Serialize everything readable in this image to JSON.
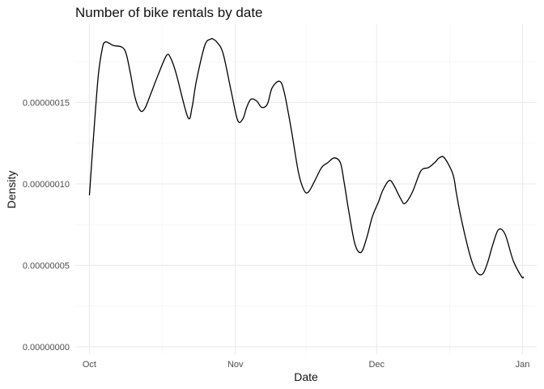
{
  "chart_data": {
    "type": "line",
    "title": "Number of bike rentals by date",
    "xlabel": "Date",
    "ylabel": "Density",
    "xlim": [
      -3,
      95
    ],
    "ylim": [
      -4.5e-09,
      1.98e-07
    ],
    "grid": true,
    "legend": "none",
    "x_ticks": [
      {
        "value": 0,
        "label": "Oct"
      },
      {
        "value": 31,
        "label": "Nov"
      },
      {
        "value": 61,
        "label": "Dec"
      },
      {
        "value": 92,
        "label": "Jan"
      }
    ],
    "x_minor_ticks": [
      15.5,
      46,
      76.5
    ],
    "y_ticks": [
      {
        "value": 0.0,
        "label": "0.00000000"
      },
      {
        "value": 5e-08,
        "label": "0.00000005"
      },
      {
        "value": 1e-07,
        "label": "0.00000010"
      },
      {
        "value": 1.5e-07,
        "label": "0.00000015"
      }
    ],
    "y_minor_ticks": [
      2.5e-08,
      7.5e-08,
      1.25e-07,
      1.75e-07
    ],
    "series": [
      {
        "name": "density",
        "x": [
          0,
          0.9,
          1.9,
          2.8,
          3.3,
          3.8,
          5.1,
          6.9,
          7.8,
          8.7,
          9.7,
          10.8,
          11.7,
          12.6,
          14.6,
          16.4,
          17.3,
          18.4,
          20.9,
          21.8,
          22.7,
          24.5,
          25.8,
          26.2,
          27.1,
          28.4,
          30.1,
          31.5,
          32.6,
          33.4,
          34.3,
          35.5,
          36.6,
          37.8,
          38.8,
          40.4,
          41.4,
          42.9,
          44.4,
          45.6,
          46.5,
          47.7,
          49.3,
          50.6,
          52,
          53.3,
          54.1,
          55.1,
          56.4,
          57.7,
          58.9,
          60.1,
          61.4,
          62.3,
          63.6,
          64.5,
          66.1,
          67,
          68.6,
          70.4,
          72,
          73.3,
          74.3,
          75.4,
          77.2,
          77.9,
          78.8,
          80.3,
          81.4,
          82.5,
          83.6,
          84.6,
          85.7,
          86.9,
          88.3,
          90,
          91.8,
          92.2
        ],
        "values": [
          9.3e-08,
          1.3e-07,
          1.67e-07,
          1.84e-07,
          1.87e-07,
          1.87e-07,
          1.85e-07,
          1.84e-07,
          1.8e-07,
          1.68e-07,
          1.53e-07,
          1.45e-07,
          1.46e-07,
          1.52e-07,
          1.67e-07,
          1.79e-07,
          1.77e-07,
          1.68e-07,
          1.41e-07,
          1.47e-07,
          1.63e-07,
          1.85e-07,
          1.89e-07,
          1.89e-07,
          1.87e-07,
          1.8e-07,
          1.57e-07,
          1.39e-07,
          1.4e-07,
          1.47e-07,
          1.52e-07,
          1.51e-07,
          1.47e-07,
          1.49e-07,
          1.59e-07,
          1.63e-07,
          1.56e-07,
          1.33e-07,
          1.07e-07,
          9.6e-08,
          9.5e-08,
          1.01e-07,
          1.1e-07,
          1.13e-07,
          1.16e-07,
          1.13e-07,
          1.01e-07,
          8.3e-08,
          6.3e-08,
          5.8e-08,
          6.7e-08,
          8e-08,
          8.9e-08,
          9.6e-08,
          1.02e-07,
          1e-07,
          9.1e-08,
          8.8e-08,
          9.5e-08,
          1.08e-07,
          1.1e-07,
          1.13e-07,
          1.16e-07,
          1.16e-07,
          1.06e-07,
          9.5e-08,
          8.1e-08,
          6.2e-08,
          5.1e-08,
          4.5e-08,
          4.5e-08,
          5.2e-08,
          6.3e-08,
          7.2e-08,
          6.9e-08,
          5.3e-08,
          4.3e-08,
          4.3e-08
        ]
      }
    ]
  }
}
